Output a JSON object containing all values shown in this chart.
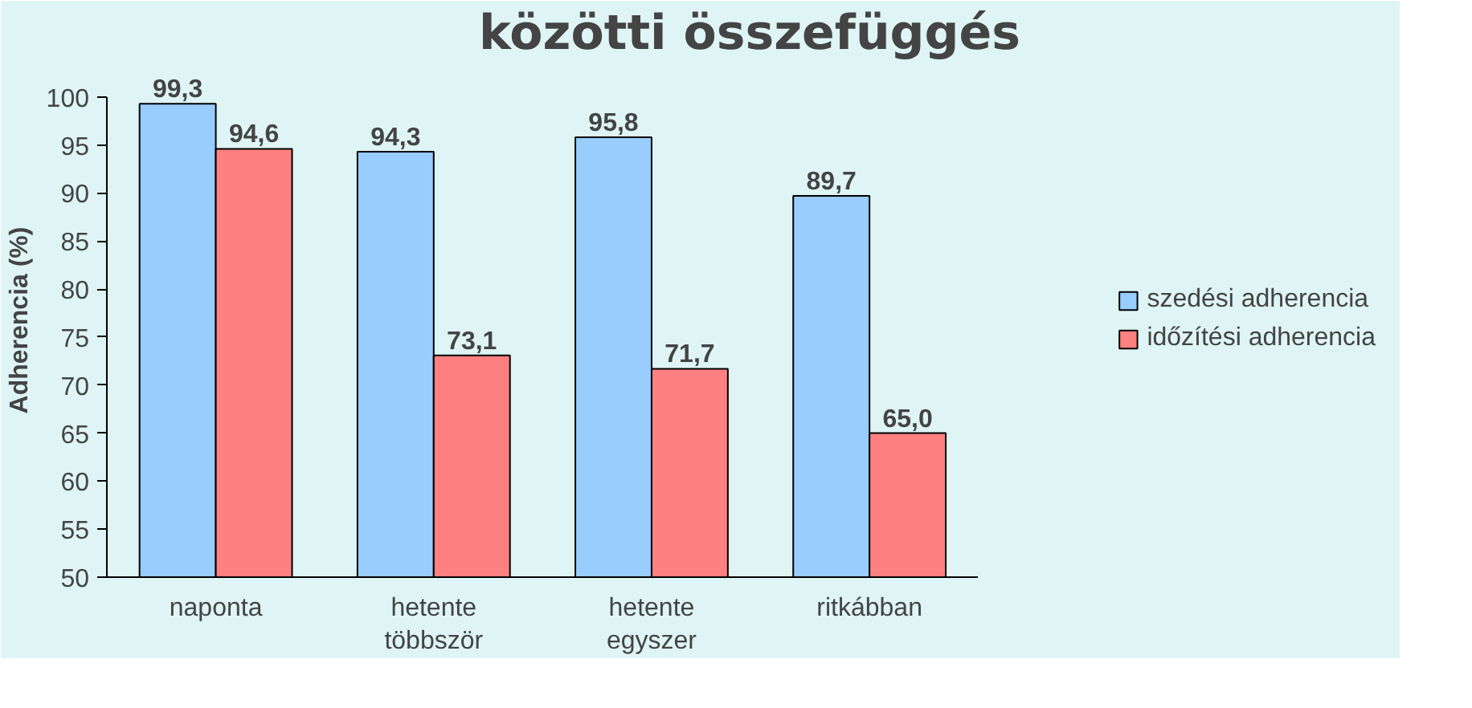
{
  "chart_data": {
    "type": "bar",
    "title": "közötti összefüggés",
    "ylabel": "Adherencia (%)",
    "categories": [
      "naponta",
      "hetente\ntöbbször",
      "hetente\negyszer",
      "ritkábban"
    ],
    "series": [
      {
        "name": "szedési adherencia",
        "color": "#99ccff",
        "values": [
          99.3,
          94.3,
          95.8,
          89.7
        ],
        "value_labels": [
          "99,3",
          "94,3",
          "95,8",
          "89,7"
        ]
      },
      {
        "name": "időzítési adherencia",
        "color": "#ff8080",
        "values": [
          94.6,
          73.1,
          71.7,
          65.0
        ],
        "value_labels": [
          "94,6",
          "73,1",
          "71,7",
          "65,0"
        ]
      }
    ],
    "ylim": [
      50,
      100
    ],
    "yticks": [
      50,
      55,
      60,
      65,
      70,
      75,
      80,
      85,
      90,
      95,
      100
    ],
    "grid": false,
    "legend": "right"
  }
}
